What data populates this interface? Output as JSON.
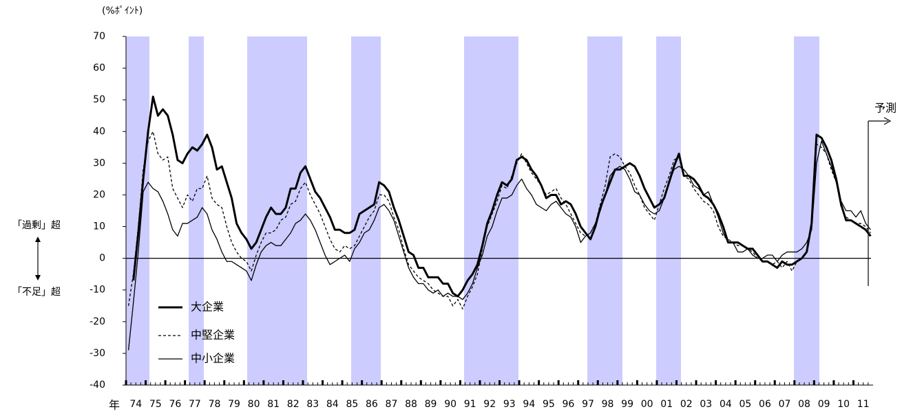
{
  "chart_data": {
    "type": "line",
    "y_unit_label": "(%ﾎﾟｲﾝﾄ)",
    "x_axis_label": "年",
    "upper_label": "「過剰」超",
    "lower_label": "「不足」超",
    "annotation": "予測",
    "ylim": [
      -40,
      70
    ],
    "yticks": [
      -40,
      -30,
      -20,
      -10,
      0,
      10,
      20,
      30,
      40,
      50,
      60,
      70
    ],
    "categories": [
      "74",
      null,
      null,
      null,
      "75",
      null,
      null,
      null,
      "76",
      null,
      null,
      null,
      "77",
      null,
      null,
      null,
      "78",
      null,
      null,
      null,
      "79",
      null,
      null,
      null,
      "80",
      null,
      null,
      null,
      "81",
      null,
      null,
      null,
      "82",
      null,
      null,
      null,
      "83",
      null,
      null,
      null,
      "84",
      null,
      null,
      null,
      "85",
      null,
      null,
      null,
      "86",
      null,
      null,
      null,
      "87",
      null,
      null,
      null,
      "88",
      null,
      null,
      null,
      "89",
      null,
      null,
      null,
      "90",
      null,
      null,
      null,
      "91",
      null,
      null,
      null,
      "92",
      null,
      null,
      null,
      "93",
      null,
      null,
      null,
      "94",
      null,
      null,
      null,
      "95",
      null,
      null,
      null,
      "96",
      null,
      null,
      null,
      "97",
      null,
      null,
      null,
      "98",
      null,
      null,
      null,
      "99",
      null,
      null,
      null,
      "00",
      null,
      null,
      null,
      "01",
      null,
      null,
      null,
      "02",
      null,
      null,
      null,
      "03",
      null,
      null,
      null,
      "04",
      null,
      null,
      null,
      "05",
      null,
      null,
      null,
      "06",
      null,
      null,
      null,
      "07",
      null,
      null,
      null,
      "08",
      null,
      null,
      null,
      "09",
      null,
      null,
      null,
      "10",
      null,
      null,
      null,
      "11",
      null,
      null,
      null
    ],
    "series": [
      {
        "name": "大企業",
        "color": "#000000",
        "line_style": "solid",
        "values": [
          null,
          -7,
          8,
          25,
          40,
          51,
          45,
          47,
          45,
          39,
          31,
          30,
          33,
          35,
          34,
          36,
          39,
          35,
          28,
          29,
          24,
          19,
          11,
          8,
          6,
          3,
          5,
          9,
          13,
          16,
          14,
          14,
          16,
          22,
          22,
          27,
          29,
          25,
          21,
          19,
          16,
          13,
          9,
          9,
          8,
          8,
          9,
          14,
          15,
          16,
          17,
          24,
          23,
          21,
          16,
          12,
          7,
          2,
          1,
          -3,
          -3,
          -6,
          -6,
          -6,
          -8,
          -8,
          -11,
          -12,
          -10,
          -7,
          -5,
          -2,
          4,
          11,
          15,
          20,
          24,
          23,
          25,
          31,
          32,
          31,
          28,
          26,
          23,
          19,
          20,
          20,
          17,
          18,
          17,
          14,
          10,
          8,
          6,
          10,
          16,
          20,
          24,
          28,
          28,
          29,
          30,
          29,
          26,
          22,
          19,
          16,
          17,
          19,
          24,
          29,
          33,
          26,
          26,
          25,
          23,
          20,
          19,
          17,
          14,
          10,
          5,
          5,
          5,
          4,
          3,
          3,
          1,
          -1,
          -1,
          -2,
          -3,
          -1,
          -2,
          -2,
          -1,
          0,
          2,
          11,
          39,
          38,
          35,
          31,
          25,
          17,
          12,
          12,
          11,
          10,
          9,
          7
        ]
      },
      {
        "name": "中堅企業",
        "color": "#000000",
        "line_style": "dashed",
        "values": [
          -15,
          -5,
          10,
          28,
          37,
          40,
          33,
          31,
          32,
          22,
          19,
          16,
          20,
          18,
          22,
          22,
          26,
          19,
          17,
          16,
          10,
          5,
          2,
          0,
          -1,
          -4,
          1,
          5,
          8,
          8,
          9,
          12,
          13,
          17,
          18,
          22,
          24,
          20,
          17,
          14,
          10,
          6,
          3,
          2,
          4,
          3,
          4,
          7,
          10,
          13,
          15,
          20,
          20,
          18,
          13,
          9,
          3,
          -2,
          -4,
          -6,
          -7,
          -8,
          -10,
          -11,
          -12,
          -12,
          -15,
          -13,
          -16,
          -12,
          -9,
          -5,
          3,
          10,
          14,
          18,
          23,
          22,
          26,
          30,
          33,
          30,
          27,
          25,
          23,
          20,
          21,
          22,
          19,
          17,
          14,
          11,
          8,
          7,
          8,
          11,
          17,
          23,
          32,
          33,
          32,
          29,
          27,
          23,
          20,
          16,
          14,
          12,
          17,
          22,
          26,
          31,
          32,
          26,
          25,
          22,
          20,
          18,
          17,
          15,
          10,
          7,
          6,
          5,
          4,
          4,
          3,
          2,
          0,
          -1,
          -1,
          -2,
          -1,
          -3,
          -1,
          -4,
          -1,
          0,
          2,
          11,
          36,
          35,
          33,
          28,
          24,
          16,
          13,
          12,
          11,
          11,
          10,
          8
        ]
      },
      {
        "name": "中小企業",
        "color": "#000000",
        "line_style": "solid",
        "values": [
          -29,
          -14,
          2,
          21,
          24,
          22,
          21,
          18,
          14,
          9,
          7,
          11,
          11,
          12,
          13,
          16,
          14,
          9,
          6,
          2,
          -1,
          -1,
          -2,
          -3,
          -4,
          -7,
          -2,
          2,
          4,
          5,
          4,
          4,
          6,
          8,
          11,
          12,
          14,
          12,
          9,
          5,
          1,
          -2,
          -1,
          0,
          1,
          -1,
          3,
          5,
          8,
          9,
          12,
          16,
          17,
          15,
          12,
          7,
          2,
          -3,
          -6,
          -8,
          -8,
          -10,
          -11,
          -10,
          -12,
          -11,
          -12,
          -12,
          -13,
          -11,
          -8,
          -3,
          1,
          7,
          10,
          15,
          19,
          19,
          20,
          23,
          25,
          22,
          20,
          17,
          16,
          15,
          17,
          18,
          16,
          14,
          13,
          10,
          5,
          7,
          8,
          11,
          15,
          20,
          26,
          28,
          29,
          28,
          25,
          21,
          20,
          17,
          15,
          14,
          15,
          19,
          24,
          28,
          29,
          28,
          26,
          23,
          22,
          20,
          21,
          17,
          13,
          8,
          5,
          5,
          2,
          2,
          3,
          1,
          0,
          0,
          1,
          1,
          -1,
          1,
          2,
          2,
          2,
          3,
          5,
          9,
          30,
          37,
          33,
          29,
          24,
          18,
          15,
          15,
          13,
          15,
          11,
          9
        ]
      }
    ]
  }
}
